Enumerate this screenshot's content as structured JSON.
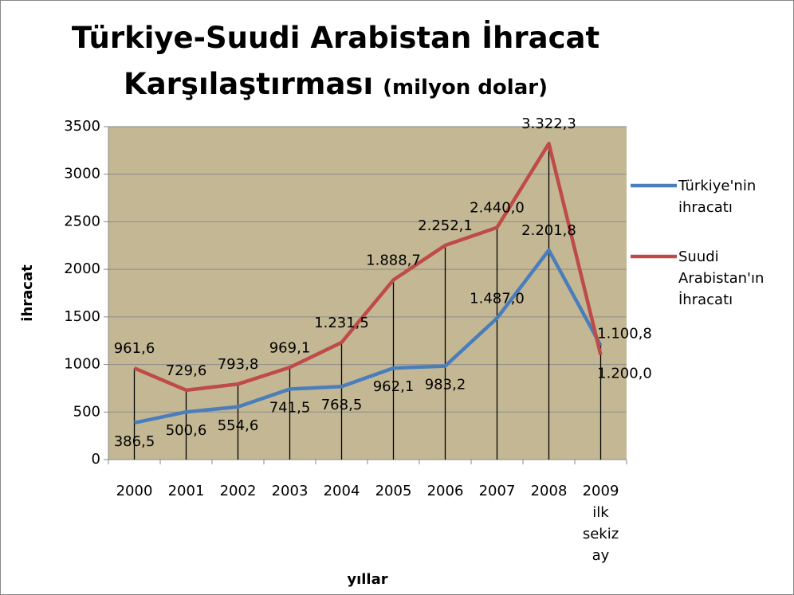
{
  "chart_data": {
    "type": "line",
    "title": "Türkiye-Suudi Arabistan İhracat Karşılaştırması",
    "subtitle": "(milyon dolar)",
    "y_label": "ihracat",
    "x_label": "yıllar",
    "categories": [
      "2000",
      "2001",
      "2002",
      "2003",
      "2004",
      "2005",
      "2006",
      "2007",
      "2008",
      "2009 ilk sekiz ay"
    ],
    "series": [
      {
        "name": "Türkiye'nin ihracatı",
        "color": "#4a7ebb",
        "values": [
          386.5,
          500.6,
          554.6,
          741.5,
          768.5,
          962.1,
          983.2,
          1487.0,
          2201.8,
          1200.0
        ],
        "value_labels": [
          "386,5",
          "500,6",
          "554,6",
          "741,5",
          "768,5",
          "962,1",
          "983,2",
          "1.487,0",
          "2.201,8",
          "1.200,0"
        ]
      },
      {
        "name": "Suudi Arabistan'ın İhracatı",
        "color": "#be4b48",
        "values": [
          961.6,
          729.6,
          793.8,
          969.1,
          1231.5,
          1888.7,
          2252.1,
          2440.0,
          3322.3,
          1100.8
        ],
        "value_labels": [
          "961,6",
          "729,6",
          "793,8",
          "969,1",
          "1.231,5",
          "1.888,7",
          "2.252,1",
          "2.440,0",
          "3.322,3",
          "1.100,8"
        ]
      }
    ],
    "ylim": [
      0,
      3500
    ],
    "yticks": [
      0,
      500,
      1000,
      1500,
      2000,
      2500,
      3000,
      3500
    ],
    "grid": true,
    "legend": "right",
    "plot_background": "#c4b894"
  }
}
